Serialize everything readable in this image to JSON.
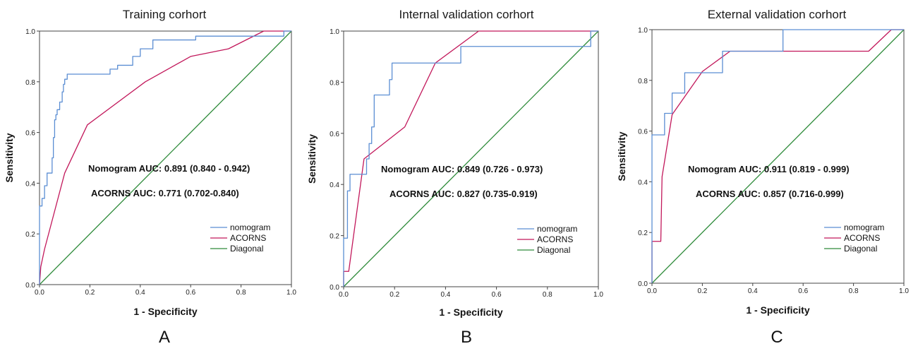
{
  "chart_data": [
    {
      "type": "line",
      "panel_letter": "A",
      "title": "Training corhort",
      "xlabel": "1 - Specificity",
      "ylabel": "Sensitivity",
      "xlim": [
        0,
        1
      ],
      "ylim": [
        0,
        1
      ],
      "ticks": [
        "0.0",
        "0.2",
        "0.4",
        "0.6",
        "0.8",
        "1.0"
      ],
      "grid": false,
      "legend_position": "bottom-right",
      "annotations": [
        "Nomogram  AUC: 0.891 (0.840 - 0.942)",
        "ACORNS  AUC: 0.771 (0.702-0.840)"
      ],
      "series": [
        {
          "name": "nomogram",
          "color": "#5b8ed3",
          "step": true,
          "points": [
            [
              0,
              0
            ],
            [
              0,
              0.31
            ],
            [
              0.01,
              0.31
            ],
            [
              0.01,
              0.34
            ],
            [
              0.02,
              0.34
            ],
            [
              0.02,
              0.39
            ],
            [
              0.03,
              0.39
            ],
            [
              0.03,
              0.44
            ],
            [
              0.05,
              0.44
            ],
            [
              0.05,
              0.5
            ],
            [
              0.055,
              0.5
            ],
            [
              0.055,
              0.58
            ],
            [
              0.06,
              0.58
            ],
            [
              0.06,
              0.65
            ],
            [
              0.065,
              0.65
            ],
            [
              0.065,
              0.67
            ],
            [
              0.07,
              0.67
            ],
            [
              0.07,
              0.69
            ],
            [
              0.08,
              0.69
            ],
            [
              0.08,
              0.72
            ],
            [
              0.09,
              0.72
            ],
            [
              0.09,
              0.76
            ],
            [
              0.095,
              0.76
            ],
            [
              0.095,
              0.79
            ],
            [
              0.1,
              0.79
            ],
            [
              0.1,
              0.81
            ],
            [
              0.11,
              0.81
            ],
            [
              0.11,
              0.83
            ],
            [
              0.28,
              0.83
            ],
            [
              0.28,
              0.85
            ],
            [
              0.31,
              0.85
            ],
            [
              0.31,
              0.865
            ],
            [
              0.37,
              0.865
            ],
            [
              0.37,
              0.9
            ],
            [
              0.4,
              0.9
            ],
            [
              0.4,
              0.93
            ],
            [
              0.45,
              0.93
            ],
            [
              0.45,
              0.965
            ],
            [
              0.62,
              0.965
            ],
            [
              0.62,
              0.98
            ],
            [
              0.97,
              0.98
            ],
            [
              0.97,
              1.0
            ],
            [
              1.0,
              1.0
            ]
          ]
        },
        {
          "name": "ACORNS",
          "color": "#c2185b",
          "step": false,
          "points": [
            [
              0,
              0
            ],
            [
              0.005,
              0.07
            ],
            [
              0.02,
              0.14
            ],
            [
              0.1,
              0.44
            ],
            [
              0.19,
              0.63
            ],
            [
              0.42,
              0.8
            ],
            [
              0.6,
              0.9
            ],
            [
              0.75,
              0.93
            ],
            [
              0.89,
              1.0
            ],
            [
              1.0,
              1.0
            ]
          ]
        },
        {
          "name": "Diagonal",
          "color": "#2e8b3a",
          "step": false,
          "points": [
            [
              0,
              0
            ],
            [
              1,
              1
            ]
          ]
        }
      ]
    },
    {
      "type": "line",
      "panel_letter": "B",
      "title": "Internal validation corhort",
      "xlabel": "1 - Specificity",
      "ylabel": "Sensitivity",
      "xlim": [
        0,
        1
      ],
      "ylim": [
        0,
        1
      ],
      "ticks": [
        "0.0",
        "0.2",
        "0.4",
        "0.6",
        "0.8",
        "1.0"
      ],
      "grid": false,
      "legend_position": "bottom-right",
      "annotations": [
        "Nomogram  AUC: 0.849 (0.726 - 0.973)",
        "ACORNS  AUC: 0.827 (0.735-0.919)"
      ],
      "series": [
        {
          "name": "nomogram",
          "color": "#5b8ed3",
          "step": true,
          "points": [
            [
              0,
              0
            ],
            [
              0,
              0.19
            ],
            [
              0.015,
              0.19
            ],
            [
              0.015,
              0.375
            ],
            [
              0.025,
              0.375
            ],
            [
              0.025,
              0.44
            ],
            [
              0.09,
              0.44
            ],
            [
              0.09,
              0.5
            ],
            [
              0.1,
              0.5
            ],
            [
              0.1,
              0.56
            ],
            [
              0.11,
              0.56
            ],
            [
              0.11,
              0.625
            ],
            [
              0.12,
              0.625
            ],
            [
              0.12,
              0.75
            ],
            [
              0.18,
              0.75
            ],
            [
              0.18,
              0.81
            ],
            [
              0.19,
              0.81
            ],
            [
              0.19,
              0.875
            ],
            [
              0.46,
              0.875
            ],
            [
              0.46,
              0.94
            ],
            [
              0.97,
              0.94
            ],
            [
              0.97,
              1.0
            ],
            [
              1.0,
              1.0
            ]
          ]
        },
        {
          "name": "ACORNS",
          "color": "#c2185b",
          "step": false,
          "points": [
            [
              0,
              0
            ],
            [
              0,
              0.06
            ],
            [
              0.02,
              0.06
            ],
            [
              0.08,
              0.5
            ],
            [
              0.24,
              0.625
            ],
            [
              0.36,
              0.875
            ],
            [
              0.53,
              1.0
            ],
            [
              1.0,
              1.0
            ]
          ]
        },
        {
          "name": "Diagonal",
          "color": "#2e8b3a",
          "step": false,
          "points": [
            [
              0,
              0
            ],
            [
              1,
              1
            ]
          ]
        }
      ]
    },
    {
      "type": "line",
      "panel_letter": "C",
      "title": "External validation corhort",
      "xlabel": "1 - Specificity",
      "ylabel": "Sensitivity",
      "xlim": [
        0,
        1
      ],
      "ylim": [
        0,
        1
      ],
      "ticks": [
        "0.0",
        "0.2",
        "0.4",
        "0.6",
        "0.8",
        "1.0"
      ],
      "grid": false,
      "legend_position": "bottom-right",
      "annotations": [
        "Nomogram  AUC: 0.911 (0.819 - 0.999)",
        "ACORNS  AUC: 0.857 (0.716-0.999)"
      ],
      "series": [
        {
          "name": "nomogram",
          "color": "#5b8ed3",
          "step": true,
          "points": [
            [
              0,
              0
            ],
            [
              0,
              0.585
            ],
            [
              0.05,
              0.585
            ],
            [
              0.05,
              0.67
            ],
            [
              0.08,
              0.67
            ],
            [
              0.08,
              0.75
            ],
            [
              0.13,
              0.75
            ],
            [
              0.13,
              0.83
            ],
            [
              0.28,
              0.83
            ],
            [
              0.28,
              0.915
            ],
            [
              0.52,
              0.915
            ],
            [
              0.52,
              1.0
            ],
            [
              1.0,
              1.0
            ]
          ]
        },
        {
          "name": "ACORNS",
          "color": "#c2185b",
          "step": false,
          "points": [
            [
              0,
              0
            ],
            [
              0,
              0.165
            ],
            [
              0.035,
              0.165
            ],
            [
              0.04,
              0.42
            ],
            [
              0.08,
              0.665
            ],
            [
              0.2,
              0.835
            ],
            [
              0.31,
              0.915
            ],
            [
              0.86,
              0.915
            ],
            [
              0.95,
              1.0
            ],
            [
              1.0,
              1.0
            ]
          ]
        },
        {
          "name": "Diagonal",
          "color": "#2e8b3a",
          "step": false,
          "points": [
            [
              0,
              0
            ],
            [
              1,
              1
            ]
          ]
        }
      ]
    }
  ]
}
